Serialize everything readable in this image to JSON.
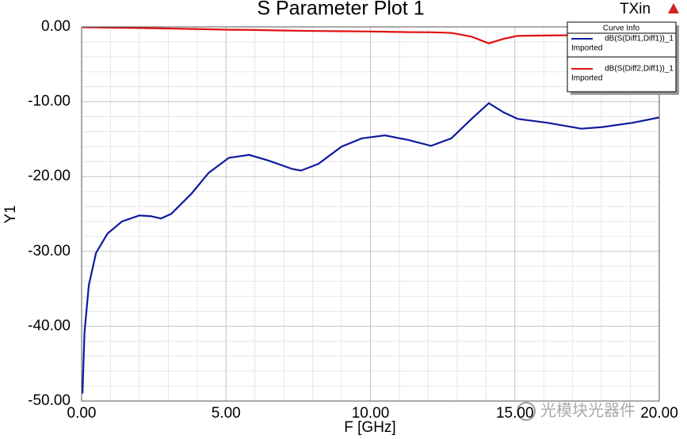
{
  "chart_data": {
    "type": "line",
    "title": "S Parameter Plot 1",
    "design_name": "TXin",
    "x_label": "F [GHz]",
    "y_label": "Y1",
    "legend_title": "Curve Info",
    "legend_position": "upper right",
    "watermark": "光模块光器件",
    "x": [
      0.03,
      0.1,
      0.25,
      0.5,
      0.9,
      1.4,
      2.0,
      2.4,
      2.75,
      3.1,
      3.8,
      4.4,
      5.1,
      5.8,
      6.5,
      7.3,
      7.6,
      8.2,
      9.0,
      9.7,
      10.5,
      11.3,
      12.1,
      12.8,
      13.5,
      14.1,
      14.6,
      15.1,
      16.1,
      17.3,
      18.0,
      19.1,
      20.0
    ],
    "series": [
      {
        "name": "dB(S(Diff1,Diff1))_1",
        "note": "Imported",
        "color": "#0d1a9e",
        "values": [
          -49,
          -40.8,
          -34.5,
          -30.2,
          -27.6,
          -26,
          -25.2,
          -25.3,
          -25.6,
          -25,
          -22.3,
          -19.5,
          -17.5,
          -17.1,
          -17.9,
          -19.0,
          -19.2,
          -18.3,
          -16.0,
          -14.9,
          -14.5,
          -15.1,
          -15.9,
          -14.9,
          -12.3,
          -10.2,
          -11.4,
          -12.3,
          -12.8,
          -13.6,
          -13.4,
          -12.8,
          -12.1
        ]
      },
      {
        "name": "dB(S(Diff2,Diff1))_1",
        "note": "Imported",
        "color": "#e01010",
        "values": [
          -0.05,
          -0.05,
          -0.06,
          -0.07,
          -0.1,
          -0.12,
          -0.15,
          -0.18,
          -0.2,
          -0.22,
          -0.28,
          -0.32,
          -0.38,
          -0.4,
          -0.45,
          -0.5,
          -0.52,
          -0.55,
          -0.58,
          -0.6,
          -0.65,
          -0.7,
          -0.72,
          -0.8,
          -1.3,
          -2.2,
          -1.6,
          -1.2,
          -1.15,
          -1.1,
          -1.1,
          -1.1,
          -1.05
        ]
      }
    ],
    "xlim": [
      0,
      20
    ],
    "xticks": [
      {
        "value": 0,
        "label": "0.00"
      },
      {
        "value": 5,
        "label": "5.00"
      },
      {
        "value": 10,
        "label": "10.00"
      },
      {
        "value": 15,
        "label": "15.00"
      },
      {
        "value": 20,
        "label": "20.00"
      }
    ],
    "ylim": [
      -50,
      0
    ],
    "yticks": [
      {
        "value": -50,
        "label": "-50.00"
      },
      {
        "value": -40,
        "label": "-40.00"
      },
      {
        "value": -30,
        "label": "-30.00"
      },
      {
        "value": -20,
        "label": "-20.00"
      },
      {
        "value": -10,
        "label": "-10.00"
      },
      {
        "value": 0,
        "label": "0.00"
      }
    ],
    "grid": true
  }
}
